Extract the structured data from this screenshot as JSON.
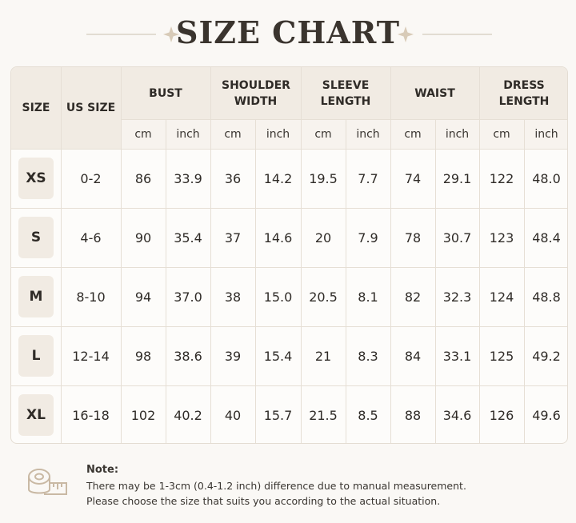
{
  "title": "SIZE CHART",
  "table": {
    "columns": [
      "SIZE",
      "US SIZE",
      "BUST",
      "SHOULDER WIDTH",
      "SLEEVE LENGTH",
      "WAIST",
      "DRESS LENGTH"
    ],
    "units": [
      "cm",
      "inch",
      "cm",
      "inch",
      "cm",
      "inch",
      "cm",
      "inch",
      "cm",
      "inch"
    ],
    "rows": [
      [
        "XS",
        "0-2",
        "86",
        "33.9",
        "36",
        "14.2",
        "19.5",
        "7.7",
        "74",
        "29.1",
        "122",
        "48.0"
      ],
      [
        "S",
        "4-6",
        "90",
        "35.4",
        "37",
        "14.6",
        "20",
        "7.9",
        "78",
        "30.7",
        "123",
        "48.4"
      ],
      [
        "M",
        "8-10",
        "94",
        "37.0",
        "38",
        "15.0",
        "20.5",
        "8.1",
        "82",
        "32.3",
        "124",
        "48.8"
      ],
      [
        "L",
        "12-14",
        "98",
        "38.6",
        "39",
        "15.4",
        "21",
        "8.3",
        "84",
        "33.1",
        "125",
        "49.2"
      ],
      [
        "XL",
        "16-18",
        "102",
        "40.2",
        "40",
        "15.7",
        "21.5",
        "8.5",
        "88",
        "34.6",
        "126",
        "49.6"
      ]
    ]
  },
  "note": {
    "label": "Note:",
    "lines": [
      "There may be 1-3cm (0.4-1.2 inch) difference due to manual measurement.",
      "Please choose the size that suits you according to the actual situation."
    ]
  }
}
